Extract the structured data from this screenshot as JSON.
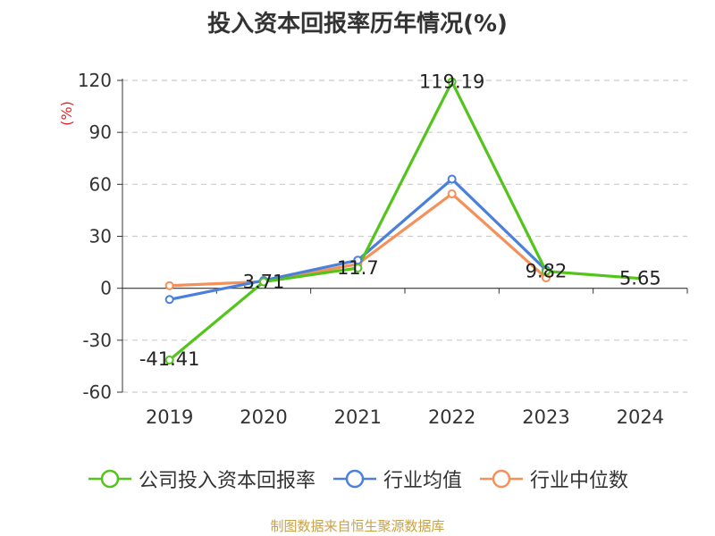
{
  "chart_data": {
    "type": "line",
    "title": "投入资本回报率历年情况(%)",
    "ylabel": "(%)",
    "xlabel": "",
    "categories": [
      "2019",
      "2020",
      "2021",
      "2022",
      "2023",
      "2024"
    ],
    "ylim": [
      -60,
      120
    ],
    "yticks": [
      120,
      90,
      60,
      30,
      0,
      -30,
      -60
    ],
    "grid": true,
    "legend_position": "bottom",
    "series": [
      {
        "name": "公司投入资本回报率",
        "color": "#52c41a",
        "values": [
          -41.41,
          3.71,
          11.7,
          119.19,
          9.82,
          5.65
        ],
        "labels": [
          "-41.41",
          "3.71",
          "11.7",
          "119.19",
          "9.82",
          "5.65"
        ]
      },
      {
        "name": "行业均值",
        "color": "#4a7fdb",
        "values": [
          -6.5,
          4.5,
          16.2,
          63.0,
          10.5,
          null
        ]
      },
      {
        "name": "行业中位数",
        "color": "#f5905a",
        "values": [
          1.5,
          3.8,
          14.0,
          54.5,
          6.0,
          null
        ]
      }
    ]
  },
  "source": "制图数据来自恒生聚源数据库"
}
